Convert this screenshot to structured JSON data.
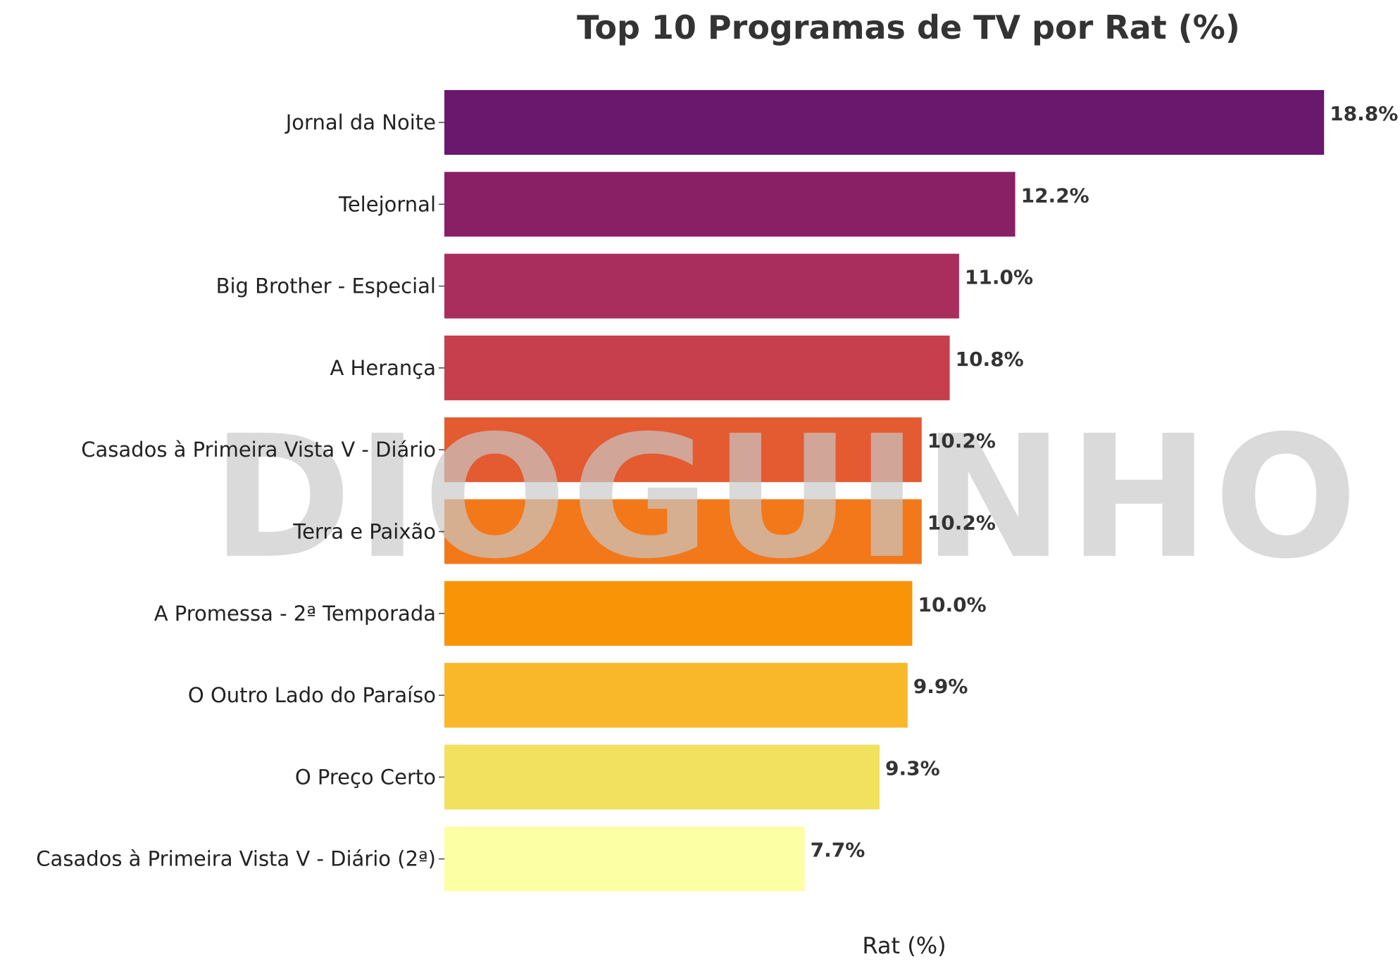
{
  "chart_data": {
    "type": "bar",
    "orientation": "horizontal",
    "title": "Top 10 Programas de TV por Rat (%)",
    "xlabel": "Rat (%)",
    "ylabel": "",
    "xlim": [
      0,
      19.7
    ],
    "grid": false,
    "legend": "none",
    "value_suffix": "%",
    "categories": [
      "Jornal da Noite",
      "Telejornal",
      "Big Brother - Especial",
      "A Herança",
      "Casados à Primeira Vista V - Diário",
      "Terra e Paixão",
      "A Promessa - 2ª Temporada",
      "O Outro Lado do Paraíso",
      "O Preço Certo",
      "Casados à Primeira Vista V - Diário (2ª)"
    ],
    "values": [
      18.8,
      12.2,
      11.0,
      10.8,
      10.2,
      10.2,
      10.0,
      9.9,
      9.3,
      7.7
    ],
    "colors": [
      "#6a176e",
      "#892065",
      "#a92e5e",
      "#c73e4c",
      "#e45a31",
      "#f37819",
      "#fa9407",
      "#f9b82a",
      "#f1e15e",
      "#fcffa4"
    ]
  },
  "watermark": {
    "text": "DIOGUINHO",
    "color": "#c8c8c8"
  }
}
